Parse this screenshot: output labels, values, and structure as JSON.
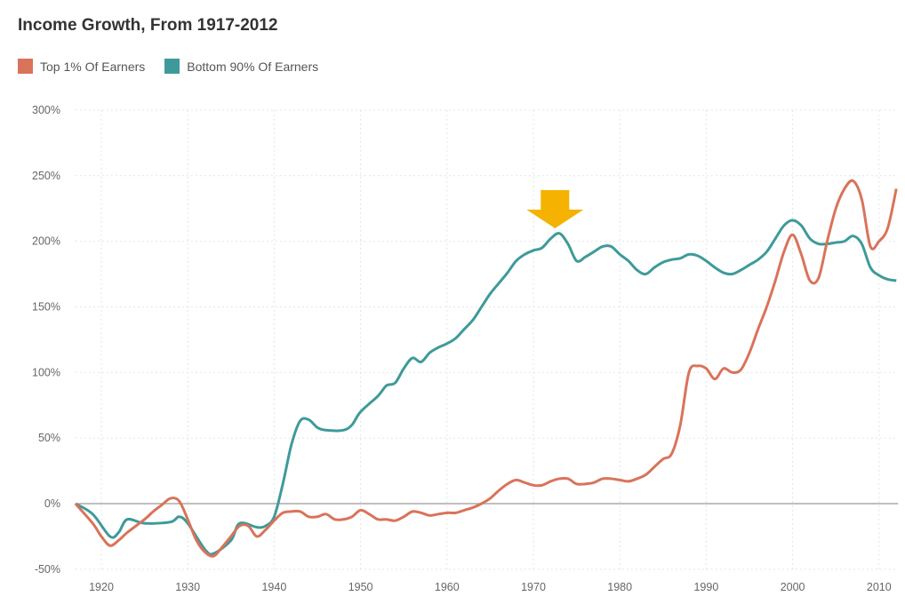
{
  "chart_data": {
    "type": "line",
    "title": "Income Growth, From 1917-2012",
    "xlabel": "",
    "ylabel": "",
    "xlim": [
      1917,
      2012
    ],
    "ylim": [
      -50,
      300
    ],
    "x_ticks": [
      1920,
      1930,
      1940,
      1950,
      1960,
      1970,
      1980,
      1990,
      2000,
      2010
    ],
    "y_ticks": [
      -50,
      0,
      50,
      100,
      150,
      200,
      250,
      300
    ],
    "y_tick_labels": [
      "-50%",
      "0%",
      "50%",
      "100%",
      "150%",
      "200%",
      "250%",
      "300%"
    ],
    "grid": true,
    "legend_placement": "top-left",
    "annotations": [
      {
        "type": "arrow",
        "x": 1972.5,
        "color": "#f5b200"
      }
    ],
    "series": [
      {
        "name": "Top 1% Of Earners",
        "color": "#d9735a",
        "x": [
          1917,
          1919,
          1920,
          1921,
          1922,
          1923,
          1925,
          1926,
          1927,
          1928,
          1929,
          1930,
          1931,
          1932,
          1933,
          1934,
          1935,
          1936,
          1937,
          1938,
          1939,
          1940,
          1941,
          1942,
          1943,
          1944,
          1945,
          1946,
          1947,
          1948,
          1949,
          1950,
          1951,
          1952,
          1953,
          1954,
          1955,
          1956,
          1957,
          1958,
          1959,
          1960,
          1961,
          1962,
          1963,
          1964,
          1965,
          1966,
          1967,
          1968,
          1969,
          1970,
          1971,
          1972,
          1973,
          1974,
          1975,
          1976,
          1977,
          1978,
          1979,
          1980,
          1981,
          1982,
          1983,
          1984,
          1985,
          1986,
          1987,
          1988,
          1989,
          1990,
          1991,
          1992,
          1993,
          1994,
          1995,
          1996,
          1997,
          1998,
          1999,
          2000,
          2001,
          2002,
          2003,
          2004,
          2005,
          2006,
          2007,
          2008,
          2009,
          2010,
          2011,
          2012
        ],
        "values": [
          0,
          -15,
          -25,
          -32,
          -28,
          -22,
          -12,
          -6,
          -1,
          4,
          2,
          -12,
          -28,
          -37,
          -40,
          -33,
          -25,
          -17,
          -17,
          -25,
          -20,
          -13,
          -7,
          -6,
          -6,
          -10,
          -10,
          -8,
          -12,
          -12,
          -10,
          -5,
          -8,
          -12,
          -12,
          -13,
          -10,
          -6,
          -7,
          -9,
          -8,
          -7,
          -7,
          -5,
          -3,
          0,
          4,
          10,
          15,
          18,
          16,
          14,
          14,
          17,
          19,
          19,
          15,
          15,
          16,
          19,
          19,
          18,
          17,
          19,
          22,
          28,
          34,
          38,
          60,
          100,
          105,
          103,
          95,
          103,
          100,
          102,
          115,
          133,
          150,
          170,
          192,
          205,
          190,
          170,
          172,
          200,
          225,
          240,
          246,
          232,
          196,
          200,
          210,
          240
        ]
      },
      {
        "name": "Bottom 90% Of Earners",
        "color": "#3e9a9a",
        "x": [
          1917,
          1919,
          1921,
          1922,
          1923,
          1925,
          1928,
          1929,
          1930,
          1932,
          1933,
          1935,
          1936,
          1938,
          1939,
          1940,
          1941,
          1942,
          1943,
          1944,
          1945,
          1946,
          1948,
          1949,
          1950,
          1952,
          1953,
          1954,
          1955,
          1956,
          1957,
          1958,
          1959,
          1960,
          1961,
          1962,
          1963,
          1964,
          1965,
          1966,
          1967,
          1968,
          1969,
          1970,
          1971,
          1972,
          1973,
          1974,
          1975,
          1976,
          1977,
          1978,
          1979,
          1980,
          1981,
          1982,
          1983,
          1984,
          1985,
          1986,
          1987,
          1988,
          1989,
          1990,
          1991,
          1992,
          1993,
          1994,
          1995,
          1996,
          1997,
          1998,
          1999,
          2000,
          2001,
          2002,
          2003,
          2004,
          2005,
          2006,
          2007,
          2008,
          2009,
          2010,
          2011,
          2012
        ],
        "values": [
          0,
          -8,
          -25,
          -22,
          -12,
          -15,
          -14,
          -10,
          -15,
          -35,
          -38,
          -28,
          -15,
          -18,
          -17,
          -10,
          15,
          45,
          63,
          64,
          58,
          56,
          56,
          60,
          70,
          82,
          90,
          92,
          103,
          111,
          108,
          115,
          119,
          122,
          126,
          133,
          140,
          150,
          160,
          168,
          176,
          185,
          190,
          193,
          195,
          202,
          206,
          198,
          185,
          188,
          192,
          196,
          196,
          190,
          185,
          178,
          175,
          180,
          184,
          186,
          187,
          190,
          189,
          185,
          180,
          176,
          175,
          178,
          182,
          186,
          192,
          202,
          212,
          216,
          212,
          202,
          198,
          198,
          199,
          200,
          204,
          198,
          180,
          174,
          171,
          170
        ]
      }
    ]
  }
}
